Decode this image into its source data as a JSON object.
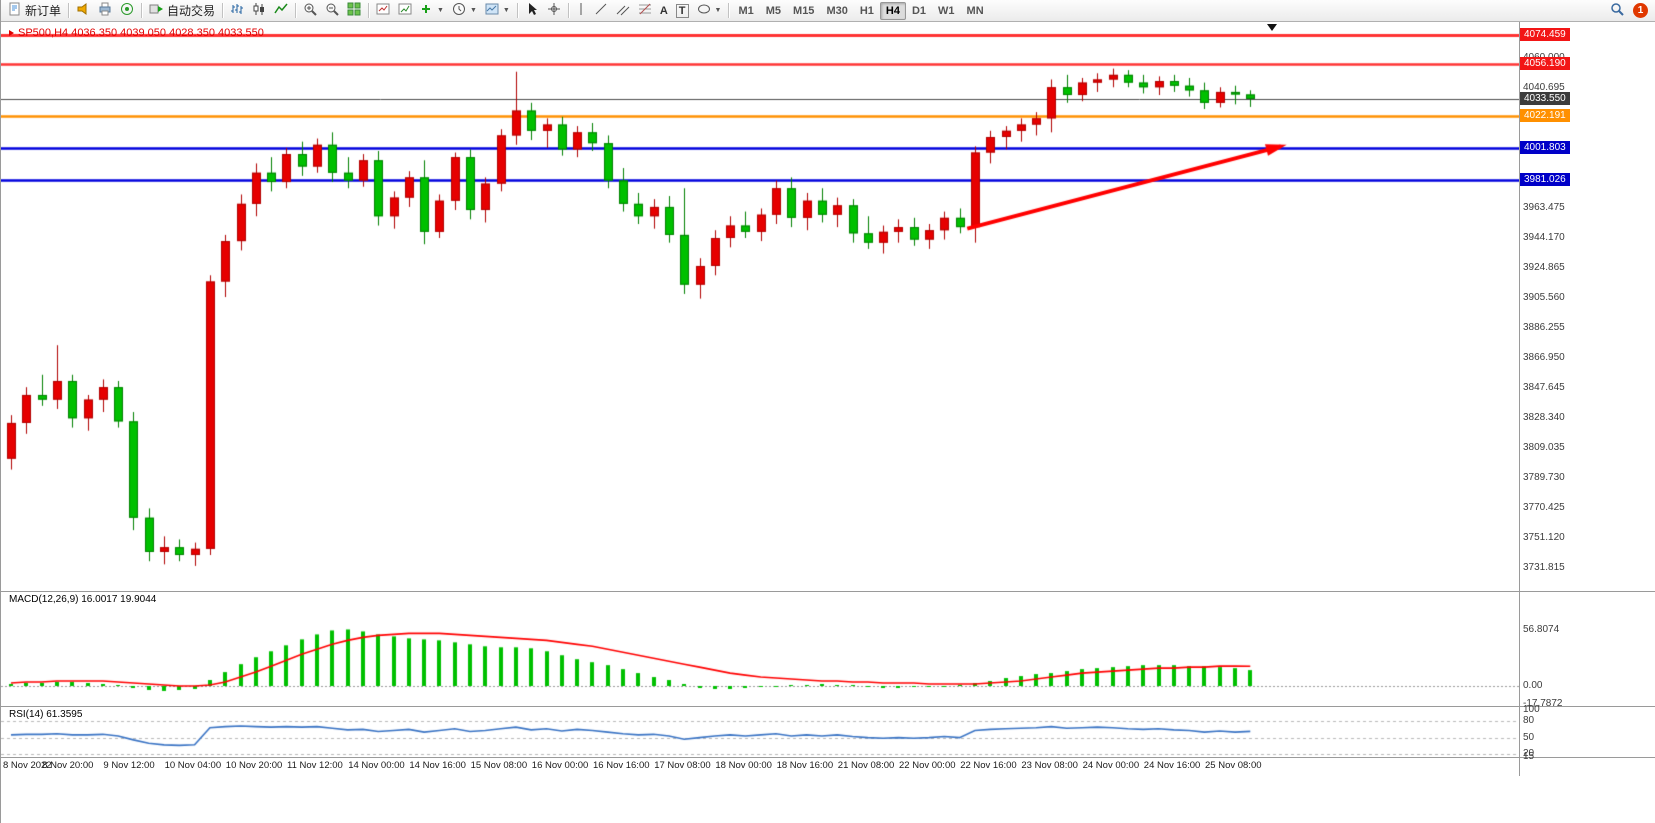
{
  "toolbar": {
    "new_order_label": "新订单",
    "auto_trading_label": "自动交易",
    "timeframes": [
      "M1",
      "M5",
      "M15",
      "M30",
      "H1",
      "H4",
      "D1",
      "W1",
      "MN"
    ],
    "active_timeframe": "H4",
    "notification_count": "1"
  },
  "chart_data": {
    "type": "candlestick",
    "symbol": "SP500",
    "period": "H4",
    "title": "SP500,H4 4036.350 4039.050 4028.350 4033.550",
    "current_ohlc": {
      "open": "4036.350",
      "high": "4039.050",
      "low": "4028.350",
      "close": "4033.550"
    },
    "colors": {
      "up": "#e60000",
      "up_border": "#b00000",
      "down": "#00c000",
      "down_border": "#008000",
      "macd_hist": "#00c000",
      "macd_signal": "#ff0000",
      "rsi_line": "#3973c4",
      "arrow": "#ff0000"
    },
    "candles": [
      [
        3802,
        3830,
        3795,
        3825
      ],
      [
        3825,
        3848,
        3818,
        3843
      ],
      [
        3843,
        3856,
        3836,
        3840
      ],
      [
        3840,
        3875,
        3834,
        3852
      ],
      [
        3852,
        3856,
        3822,
        3828
      ],
      [
        3828,
        3843,
        3820,
        3840
      ],
      [
        3840,
        3853,
        3832,
        3848
      ],
      [
        3848,
        3852,
        3822,
        3826
      ],
      [
        3826,
        3832,
        3756,
        3764
      ],
      [
        3764,
        3770,
        3736,
        3742
      ],
      [
        3742,
        3752,
        3734,
        3745
      ],
      [
        3745,
        3750,
        3736,
        3740
      ],
      [
        3740,
        3748,
        3733,
        3744
      ],
      [
        3744,
        3920,
        3740,
        3916
      ],
      [
        3916,
        3946,
        3906,
        3942
      ],
      [
        3942,
        3972,
        3936,
        3966
      ],
      [
        3966,
        3992,
        3958,
        3986
      ],
      [
        3986,
        3996,
        3974,
        3980
      ],
      [
        3980,
        4002,
        3976,
        3998
      ],
      [
        3998,
        4006,
        3984,
        3990
      ],
      [
        3990,
        4008,
        3986,
        4004
      ],
      [
        4004,
        4012,
        3980,
        3986
      ],
      [
        3986,
        3996,
        3976,
        3981
      ],
      [
        3981,
        3998,
        3977,
        3994
      ],
      [
        3994,
        4000,
        3952,
        3958
      ],
      [
        3958,
        3974,
        3950,
        3970
      ],
      [
        3970,
        3987,
        3964,
        3983
      ],
      [
        3983,
        3994,
        3940,
        3948
      ],
      [
        3948,
        3972,
        3944,
        3968
      ],
      [
        3968,
        3999,
        3962,
        3996
      ],
      [
        3996,
        4001,
        3956,
        3962
      ],
      [
        3962,
        3983,
        3954,
        3979
      ],
      [
        3979,
        4014,
        3974,
        4010
      ],
      [
        4010,
        4051,
        4004,
        4026
      ],
      [
        4026,
        4031,
        4007,
        4013
      ],
      [
        4013,
        4021,
        4002,
        4017
      ],
      [
        4017,
        4022,
        3997,
        4001
      ],
      [
        4001,
        4016,
        3996,
        4012
      ],
      [
        4012,
        4018,
        4000,
        4005
      ],
      [
        4005,
        4010,
        3976,
        3981
      ],
      [
        3981,
        3989,
        3961,
        3966
      ],
      [
        3966,
        3973,
        3953,
        3958
      ],
      [
        3958,
        3969,
        3950,
        3964
      ],
      [
        3964,
        3971,
        3941,
        3946
      ],
      [
        3946,
        3976,
        3908,
        3914
      ],
      [
        3914,
        3931,
        3905,
        3926
      ],
      [
        3926,
        3949,
        3920,
        3944
      ],
      [
        3944,
        3958,
        3938,
        3952
      ],
      [
        3952,
        3961,
        3944,
        3948
      ],
      [
        3948,
        3963,
        3942,
        3959
      ],
      [
        3959,
        3981,
        3953,
        3976
      ],
      [
        3976,
        3983,
        3951,
        3957
      ],
      [
        3957,
        3973,
        3949,
        3968
      ],
      [
        3968,
        3976,
        3954,
        3959
      ],
      [
        3959,
        3970,
        3951,
        3965
      ],
      [
        3965,
        3969,
        3941,
        3947
      ],
      [
        3947,
        3958,
        3937,
        3941
      ],
      [
        3941,
        3952,
        3934,
        3948
      ],
      [
        3948,
        3956,
        3941,
        3951
      ],
      [
        3951,
        3957,
        3939,
        3943
      ],
      [
        3943,
        3953,
        3937,
        3949
      ],
      [
        3949,
        3961,
        3943,
        3957
      ],
      [
        3957,
        3963,
        3947,
        3951
      ],
      [
        3951,
        4003,
        3941,
        3999
      ],
      [
        3999,
        4013,
        3992,
        4009
      ],
      [
        4009,
        4016,
        4001,
        4013
      ],
      [
        4013,
        4021,
        4006,
        4017
      ],
      [
        4017,
        4025,
        4010,
        4021
      ],
      [
        4021,
        4046,
        4012,
        4041
      ],
      [
        4041,
        4049,
        4031,
        4036
      ],
      [
        4036,
        4047,
        4032,
        4044
      ],
      [
        4044,
        4050,
        4038,
        4046
      ],
      [
        4046,
        4053,
        4041,
        4049
      ],
      [
        4049,
        4052,
        4041,
        4044
      ],
      [
        4044,
        4049,
        4037,
        4041
      ],
      [
        4041,
        4048,
        4036,
        4045
      ],
      [
        4045,
        4049,
        4038,
        4042
      ],
      [
        4042,
        4047,
        4035,
        4039
      ],
      [
        4039,
        4044,
        4027,
        4031
      ],
      [
        4031,
        4041,
        4028,
        4038
      ],
      [
        4038,
        4042,
        4030,
        4036.35
      ],
      [
        4036.35,
        4039.05,
        4028.35,
        4033.55
      ]
    ],
    "price_lines": [
      {
        "price": 4074.459,
        "label": "4074.459",
        "color": "#ff3333",
        "tag": "#f21616",
        "width": 3
      },
      {
        "price": 4056.19,
        "label": "4056.190",
        "color": "#ff3333",
        "tag": "#f21616",
        "width": 2.5
      },
      {
        "price": 4033.55,
        "label": "4033.550",
        "color": "#4a4a4a",
        "tag": "#3c3c3c",
        "width": 1
      },
      {
        "price": 4022.191,
        "label": "4022.191",
        "color": "#ff9000",
        "tag": "#ff9000",
        "width": 2.5
      },
      {
        "price": 4001.803,
        "label": "4001.803",
        "color": "#0000dd",
        "tag": "#0000c8",
        "width": 2.5
      },
      {
        "price": 3981.026,
        "label": "3981.026",
        "color": "#0000dd",
        "tag": "#0000c8",
        "width": 2.5
      }
    ],
    "y_axis_labels": [
      "4060.000",
      "4040.695",
      "3963.475",
      "3944.170",
      "3924.865",
      "3905.560",
      "3886.255",
      "3866.950",
      "3847.645",
      "3828.340",
      "3809.035",
      "3789.730",
      "3770.425",
      "3751.120",
      "3731.815"
    ],
    "x_axis_labels": [
      "8 Nov 2022",
      "8 Nov 20:00",
      "9 Nov 12:00",
      "10 Nov 04:00",
      "10 Nov 20:00",
      "11 Nov 12:00",
      "14 Nov 00:00",
      "14 Nov 16:00",
      "15 Nov 08:00",
      "16 Nov 00:00",
      "16 Nov 16:00",
      "17 Nov 08:00",
      "18 Nov 00:00",
      "18 Nov 16:00",
      "21 Nov 08:00",
      "22 Nov 00:00",
      "22 Nov 16:00",
      "23 Nov 08:00",
      "24 Nov 00:00",
      "24 Nov 16:00",
      "25 Nov 08:00"
    ],
    "annotation_arrow": {
      "from_index": 62.5,
      "from_price": 3950,
      "to_index": 83,
      "to_price": 4003,
      "color": "#ff0000"
    },
    "macd": {
      "label": "MACD(12,26,9) 16.0017 19.9044",
      "axis_labels": [
        {
          "v": 56.8074,
          "t": "56.8074"
        },
        {
          "v": 0,
          "t": "0.00"
        },
        {
          "v": -17.7872,
          "t": "-17.7872"
        }
      ],
      "histogram": [
        2,
        3,
        3,
        4,
        4,
        3,
        2,
        1,
        -2,
        -4,
        -5,
        -4,
        -3,
        6,
        14,
        22,
        29,
        35,
        41,
        47,
        52,
        56,
        57,
        55,
        52,
        50,
        48,
        47,
        46,
        44,
        42,
        40,
        39,
        39,
        38,
        35,
        31,
        27,
        24,
        21,
        17,
        13,
        9,
        6,
        2,
        -2,
        -3,
        -3,
        -2,
        -1,
        0,
        1,
        1,
        2,
        1,
        1,
        -1,
        -2,
        -2,
        -1,
        0,
        0,
        1,
        3,
        5,
        8,
        10,
        12,
        13,
        15,
        17,
        18,
        19,
        20,
        21,
        21,
        21,
        20,
        20,
        19,
        18,
        16
      ],
      "signal": [
        3,
        4,
        4,
        5,
        5,
        5,
        5,
        4,
        3,
        2,
        1,
        0,
        0,
        1,
        4,
        9,
        14,
        20,
        26,
        32,
        37,
        42,
        46,
        49,
        51,
        52,
        53,
        53,
        53,
        52,
        51,
        50,
        49,
        48,
        47,
        46,
        44,
        42,
        40,
        37,
        34,
        31,
        28,
        25,
        22,
        19,
        16,
        13,
        11,
        9,
        8,
        7,
        6,
        5,
        5,
        4,
        4,
        3,
        3,
        3,
        2,
        2,
        2,
        2,
        3,
        4,
        5,
        7,
        9,
        11,
        13,
        14,
        15,
        16,
        17,
        18,
        18,
        19,
        19,
        20,
        20,
        19.9
      ]
    },
    "rsi": {
      "label": "RSI(14) 61.3595",
      "axis_labels": [
        {
          "v": 100,
          "t": "100"
        },
        {
          "v": 80,
          "t": "80"
        },
        {
          "v": 50,
          "t": "50"
        },
        {
          "v": 20,
          "t": "20"
        },
        {
          "v": 15,
          "t": "15"
        }
      ],
      "levels": [
        80,
        50,
        20
      ],
      "values": [
        55,
        56,
        56,
        57,
        55,
        55,
        56,
        53,
        46,
        40,
        37,
        36,
        37,
        68,
        70,
        71,
        70,
        69,
        70,
        69,
        70,
        67,
        64,
        65,
        61,
        63,
        65,
        60,
        63,
        66,
        61,
        63,
        66,
        69,
        64,
        66,
        62,
        65,
        63,
        60,
        57,
        55,
        56,
        53,
        47,
        50,
        53,
        55,
        53,
        55,
        57,
        53,
        55,
        53,
        55,
        52,
        50,
        49,
        50,
        49,
        50,
        52,
        50,
        63,
        65,
        66,
        67,
        68,
        70,
        67,
        68,
        69,
        68,
        66,
        65,
        66,
        64,
        63,
        60,
        62,
        60,
        61.36
      ]
    }
  }
}
